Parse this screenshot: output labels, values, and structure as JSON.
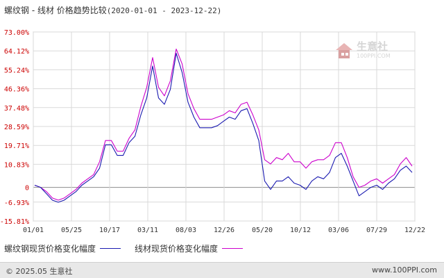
{
  "header": {
    "title": "螺纹钢 - 线材 价格趋势比较",
    "range": "(2020-01-01 - 2023-12-22)"
  },
  "watermark": {
    "brand": "生意社",
    "domain": "100PPI.COM"
  },
  "footer": {
    "copyright": "© 2025.05 生意社",
    "site": "www.100PPI.com"
  },
  "colors": {
    "series_rebar": "#1a1ab0",
    "series_wire": "#cc00cc",
    "grid": "#d9d9d9",
    "zero_line": "#999999",
    "footer_bg": "#e8e8e8"
  },
  "chart_data": {
    "type": "line",
    "title": "螺纹钢 - 线材 价格趋势比较",
    "xlabel": "",
    "ylabel": "",
    "x_ticks": [
      "01/01",
      "05/25",
      "10/17",
      "03/11",
      "08/03",
      "12/26",
      "05/20",
      "10/12",
      "03/06",
      "07/29",
      "12/22"
    ],
    "y_ticks": [
      "73.00%",
      "64.12%",
      "55.24%",
      "46.36%",
      "37.48%",
      "28.59%",
      "19.71%",
      "10.83%",
      "0",
      "-6.93%",
      "-15.81%"
    ],
    "ylim": [
      -15.81,
      73.0
    ],
    "grid": true,
    "legend_position": "bottom-left",
    "x": [
      "01/01",
      "02/01",
      "03/01",
      "04/01",
      "05/01",
      "05/25",
      "06/20",
      "07/20",
      "08/20",
      "09/20",
      "10/17",
      "11/10",
      "12/05",
      "12/28",
      "01/20",
      "02/10",
      "03/11",
      "03/20",
      "04/10",
      "05/01",
      "05/10",
      "05/25",
      "06/15",
      "07/10",
      "08/03",
      "08/20",
      "09/05",
      "09/20",
      "10/10",
      "10/25",
      "11/15",
      "12/05",
      "12/26",
      "01/15",
      "02/05",
      "03/01",
      "04/01",
      "04/20",
      "05/20",
      "06/10",
      "07/05",
      "07/20",
      "08/10",
      "09/01",
      "09/20",
      "10/12",
      "11/01",
      "11/20",
      "12/10",
      "01/05",
      "02/01",
      "03/06",
      "03/25",
      "04/20",
      "05/10",
      "06/01",
      "07/01",
      "07/29",
      "08/20",
      "09/15",
      "10/10",
      "11/01",
      "11/20",
      "12/05",
      "12/22"
    ],
    "series": [
      {
        "name": "螺纹钢现货价格变化幅度",
        "values": [
          1,
          0,
          -3,
          -6,
          -7,
          -6,
          -4,
          -2,
          1,
          3,
          5,
          9,
          20,
          20,
          15,
          15,
          21,
          24,
          34,
          42,
          57,
          42,
          39,
          46,
          63,
          54,
          40,
          33,
          28,
          28,
          28,
          29,
          31,
          33,
          32,
          36,
          37,
          30,
          22,
          3,
          -1,
          3,
          3,
          5,
          2,
          1,
          -1,
          3,
          5,
          4,
          7,
          14,
          16,
          10,
          3,
          -4,
          -2,
          0,
          1,
          -1,
          2,
          4,
          8,
          10,
          7
        ]
      },
      {
        "name": "线材现货价格变化幅度",
        "values": [
          1,
          0,
          -2,
          -5,
          -6,
          -5,
          -3,
          -1,
          2,
          4,
          6,
          12,
          22,
          22,
          17,
          17,
          23,
          27,
          38,
          47,
          61,
          47,
          43,
          50,
          65,
          58,
          44,
          37,
          32,
          32,
          32,
          33,
          34,
          36,
          35,
          39,
          40,
          34,
          27,
          13,
          11,
          14,
          13,
          16,
          12,
          12,
          9,
          12,
          13,
          13,
          15,
          21,
          21,
          14,
          5,
          0,
          1,
          3,
          4,
          2,
          4,
          6,
          11,
          14,
          10
        ]
      }
    ]
  }
}
